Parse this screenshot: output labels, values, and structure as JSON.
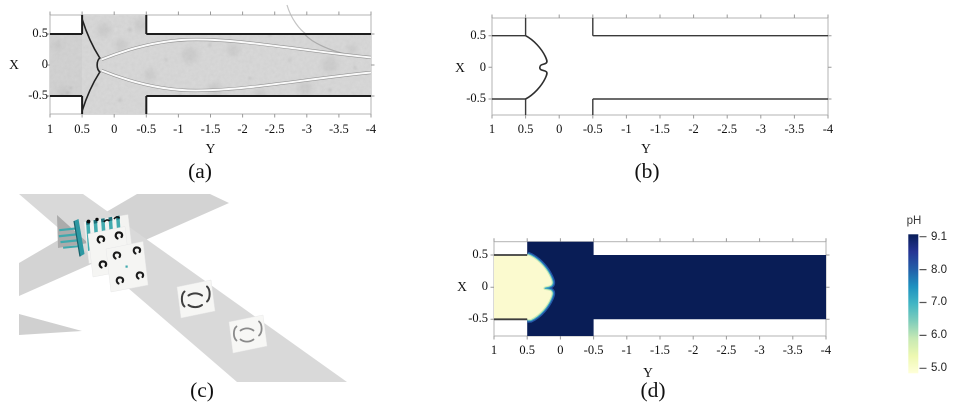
{
  "figure": {
    "axis": {
      "xlabel": "Y",
      "ylabel": "X",
      "xticks": [
        "1",
        "0.5",
        "0",
        "-0.5",
        "-1",
        "-1.5",
        "-2",
        "-2.5",
        "-3",
        "-3.5",
        "-4"
      ],
      "yticks": [
        "0.5",
        "0",
        "-0.5"
      ]
    },
    "panels": {
      "a": {
        "label": "(a)"
      },
      "b": {
        "label": "(b)"
      },
      "c": {
        "label": "(c)"
      },
      "d": {
        "label": "(d)"
      }
    },
    "colorbar": {
      "title": "pH",
      "ticks": [
        "9.1",
        "8.0",
        "7.0",
        "6.0",
        "5.0"
      ]
    }
  },
  "chart_data": [
    {
      "type": "heatmap",
      "panel": "d",
      "xlabel": "Y",
      "ylabel": "X",
      "xlim": [
        1,
        -4
      ],
      "ylim": [
        -0.75,
        0.75
      ],
      "colorbar_label": "pH",
      "colorbar_ticks": [
        9.1,
        8.0,
        7.0,
        6.0,
        5.0
      ],
      "values_note": "inlet stream pH 5.0 pale yellow from Y=1 to interface near Y=0.2; rest of channel pH 9.1 dark navy"
    },
    {
      "type": "line",
      "panel": "b",
      "xlabel": "Y",
      "ylabel": "X",
      "xlim": [
        1,
        -4
      ],
      "ylim": [
        -0.75,
        0.75
      ],
      "values_note": "channel wall outline with interface curve bulging to Y=0.18 with central notch at X=0"
    }
  ]
}
